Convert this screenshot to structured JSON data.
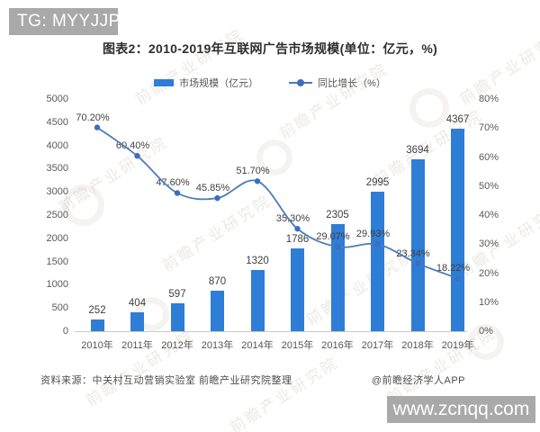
{
  "badges": {
    "telegram": "TG: MYYJJPP",
    "site": "www.zcnqq.com"
  },
  "title": "图表2：2010-2019年互联网广告市场规模(单位：亿元，%)",
  "legend": [
    {
      "label": "市场规模（亿元）",
      "type": "bar"
    },
    {
      "label": "同比增长（%）",
      "type": "line"
    }
  ],
  "source": {
    "left": "资料来源：中关村互动营销实验室  前瞻产业研究院整理",
    "right": "@前瞻经济学人APP"
  },
  "watermark": {
    "text": "前瞻产业研究院"
  },
  "colors": {
    "bar": "#2e7dd6",
    "line": "#4d7cba",
    "marker": "#3b6fc0",
    "axis_text": "#595959",
    "baseline": "#c9c9c9",
    "badge_bg": "#a9a9a9",
    "title": "#2e2e2e"
  },
  "chart_data": {
    "type": "bar+line combo",
    "title": "图表2：2010-2019年互联网广告市场规模(单位：亿元，%)",
    "categories": [
      "2010年",
      "2011年",
      "2012年",
      "2013年",
      "2014年",
      "2015年",
      "2016年",
      "2017年",
      "2018年",
      "2019年"
    ],
    "series": [
      {
        "name": "市场规模（亿元）",
        "type": "bar",
        "axis": "left",
        "values": [
          252,
          404,
          597,
          870,
          1320,
          1786,
          2305,
          2995,
          3694,
          4367
        ],
        "labels": [
          "252",
          "404",
          "597",
          "870",
          "1320",
          "1786",
          "2305",
          "2995",
          "3694",
          "4367"
        ]
      },
      {
        "name": "同比增长（%）",
        "type": "line",
        "axis": "right",
        "values": [
          70.2,
          60.4,
          47.6,
          45.85,
          51.7,
          35.3,
          29.07,
          29.93,
          23.34,
          18.22
        ],
        "labels": [
          "70.20%",
          "60.40%",
          "47.60%",
          "45.85%",
          "51.70%",
          "35.30%",
          "29.07%",
          "29.93%",
          "23.34%",
          "18.22%"
        ]
      }
    ],
    "left_axis": {
      "min": 0,
      "max": 5000,
      "step": 500,
      "ticks": [
        "0",
        "500",
        "1000",
        "1500",
        "2000",
        "2500",
        "3000",
        "3500",
        "4000",
        "4500",
        "5000"
      ]
    },
    "right_axis": {
      "min": 0,
      "max": 80,
      "step": 10,
      "ticks": [
        "0%",
        "10%",
        "20%",
        "30%",
        "40%",
        "50%",
        "60%",
        "70%",
        "80%"
      ]
    },
    "grid": false,
    "legend_position": "top-center"
  }
}
